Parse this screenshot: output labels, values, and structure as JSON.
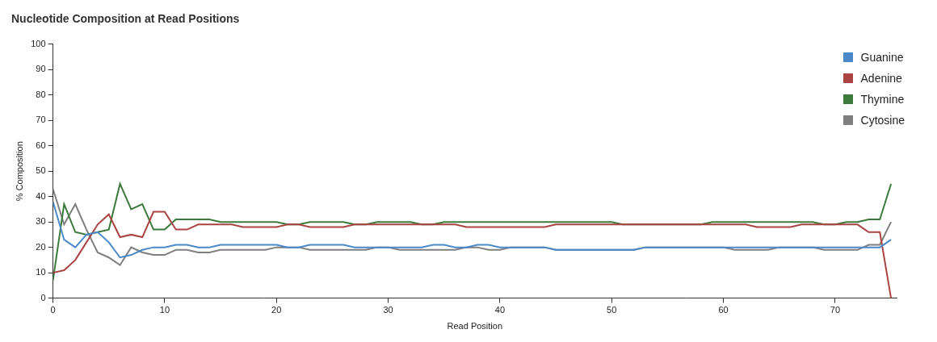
{
  "chart_data": {
    "type": "line",
    "title": "Nucleotide Composition at Read Positions",
    "x_label": "Read Position",
    "y_label": "% Composition",
    "x": [
      0,
      1,
      2,
      3,
      4,
      5,
      6,
      7,
      8,
      9,
      10,
      11,
      12,
      13,
      14,
      15,
      16,
      17,
      18,
      19,
      20,
      21,
      22,
      23,
      24,
      25,
      26,
      27,
      28,
      29,
      30,
      31,
      32,
      33,
      34,
      35,
      36,
      37,
      38,
      39,
      40,
      41,
      42,
      43,
      44,
      45,
      46,
      47,
      48,
      49,
      50,
      51,
      52,
      53,
      54,
      55,
      56,
      57,
      58,
      59,
      60,
      61,
      62,
      63,
      64,
      65,
      66,
      67,
      68,
      69,
      70,
      71,
      72,
      73,
      74,
      75
    ],
    "series": [
      {
        "name": "Guanine",
        "color": "#4a89c8",
        "values": [
          38,
          23,
          20,
          25,
          26,
          22,
          16,
          17,
          19,
          20,
          20,
          21,
          21,
          20,
          20,
          21,
          21,
          21,
          21,
          21,
          21,
          20,
          20,
          21,
          21,
          21,
          21,
          20,
          20,
          20,
          20,
          20,
          20,
          20,
          21,
          21,
          20,
          20,
          21,
          21,
          20,
          20,
          20,
          20,
          20,
          19,
          19,
          19,
          19,
          19,
          19,
          19,
          19,
          20,
          20,
          20,
          20,
          20,
          20,
          20,
          20,
          20,
          20,
          20,
          20,
          20,
          20,
          20,
          20,
          20,
          20,
          20,
          20,
          20,
          20,
          23
        ]
      },
      {
        "name": "Adenine",
        "color": "#a94442",
        "values": [
          10,
          11,
          15,
          22,
          29,
          33,
          24,
          25,
          24,
          34,
          34,
          27,
          27,
          29,
          29,
          29,
          29,
          28,
          28,
          28,
          28,
          29,
          29,
          28,
          28,
          28,
          28,
          29,
          29,
          29,
          29,
          29,
          29,
          29,
          29,
          29,
          29,
          28,
          28,
          28,
          28,
          28,
          28,
          28,
          28,
          29,
          29,
          29,
          29,
          29,
          29,
          29,
          29,
          29,
          29,
          29,
          29,
          29,
          29,
          29,
          29,
          29,
          29,
          28,
          28,
          28,
          28,
          29,
          29,
          29,
          29,
          29,
          29,
          26,
          26,
          0
        ]
      },
      {
        "name": "Thymine",
        "color": "#3c7a3c",
        "values": [
          7,
          37,
          26,
          25,
          26,
          27,
          45,
          35,
          37,
          27,
          27,
          31,
          31,
          31,
          31,
          30,
          30,
          30,
          30,
          30,
          30,
          29,
          29,
          30,
          30,
          30,
          30,
          29,
          29,
          30,
          30,
          30,
          30,
          29,
          29,
          30,
          30,
          30,
          30,
          30,
          30,
          30,
          30,
          30,
          30,
          30,
          30,
          30,
          30,
          30,
          30,
          29,
          29,
          29,
          29,
          29,
          29,
          29,
          29,
          30,
          30,
          30,
          30,
          30,
          30,
          30,
          30,
          30,
          30,
          29,
          29,
          30,
          30,
          31,
          31,
          45
        ]
      },
      {
        "name": "Cytosine",
        "color": "#7f7f7f",
        "values": [
          43,
          29,
          37,
          27,
          18,
          16,
          13,
          20,
          18,
          17,
          17,
          19,
          19,
          18,
          18,
          19,
          19,
          19,
          19,
          19,
          20,
          20,
          20,
          19,
          19,
          19,
          19,
          19,
          19,
          20,
          20,
          19,
          19,
          19,
          19,
          19,
          19,
          20,
          20,
          19,
          19,
          20,
          20,
          20,
          20,
          19,
          19,
          19,
          19,
          19,
          19,
          19,
          19,
          20,
          20,
          20,
          20,
          20,
          20,
          20,
          20,
          19,
          19,
          19,
          19,
          20,
          20,
          20,
          20,
          19,
          19,
          19,
          19,
          21,
          21,
          30
        ]
      }
    ],
    "xlim": [
      0,
      75.5
    ],
    "xticks": [
      0,
      10,
      20,
      30,
      40,
      50,
      60,
      70
    ],
    "ylim": [
      0,
      100
    ],
    "yticks": [
      0,
      10,
      20,
      30,
      40,
      50,
      60,
      70,
      80,
      90,
      100
    ],
    "grid": false,
    "legend": "upper right",
    "marker": "none",
    "line_style": "solid"
  }
}
